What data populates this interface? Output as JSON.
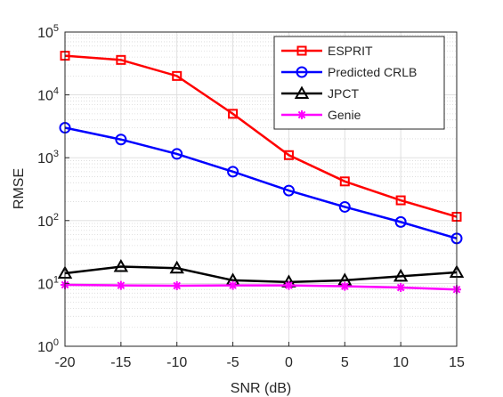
{
  "chart_data": {
    "type": "line",
    "xlabel": "SNR (dB)",
    "ylabel": "RMSE",
    "x": [
      -20,
      -15,
      -10,
      -5,
      0,
      5,
      10,
      15
    ],
    "xlim": [
      -20,
      15
    ],
    "ylim": [
      1,
      100000
    ],
    "yscale": "log",
    "x_ticks": [
      "-20",
      "-15",
      "-10",
      "-5",
      "0",
      "5",
      "10",
      "15"
    ],
    "y_ticks": [
      {
        "base": "10",
        "exp": "0"
      },
      {
        "base": "10",
        "exp": "1"
      },
      {
        "base": "10",
        "exp": "2"
      },
      {
        "base": "10",
        "exp": "3"
      },
      {
        "base": "10",
        "exp": "4"
      },
      {
        "base": "10",
        "exp": "5"
      }
    ],
    "grid": true,
    "minor_grid": true,
    "legend_position": "top-right",
    "series": [
      {
        "name": "ESPRIT",
        "color": "#ff0000",
        "marker": "square",
        "values": [
          42000,
          36000,
          20000,
          5000,
          1100,
          420,
          210,
          115
        ]
      },
      {
        "name": "Predicted CRLB",
        "color": "#0000ff",
        "marker": "circle",
        "values": [
          3000,
          1950,
          1150,
          600,
          300,
          165,
          95,
          52
        ]
      },
      {
        "name": "JPCT",
        "color": "#000000",
        "marker": "triangle",
        "values": [
          14.5,
          18.5,
          17.5,
          11.2,
          10.5,
          11.2,
          13.0,
          15.0
        ]
      },
      {
        "name": "Genie",
        "color": "#ff00ff",
        "marker": "asterisk",
        "values": [
          9.5,
          9.3,
          9.2,
          9.3,
          9.3,
          9.0,
          8.6,
          8.0
        ]
      }
    ]
  }
}
